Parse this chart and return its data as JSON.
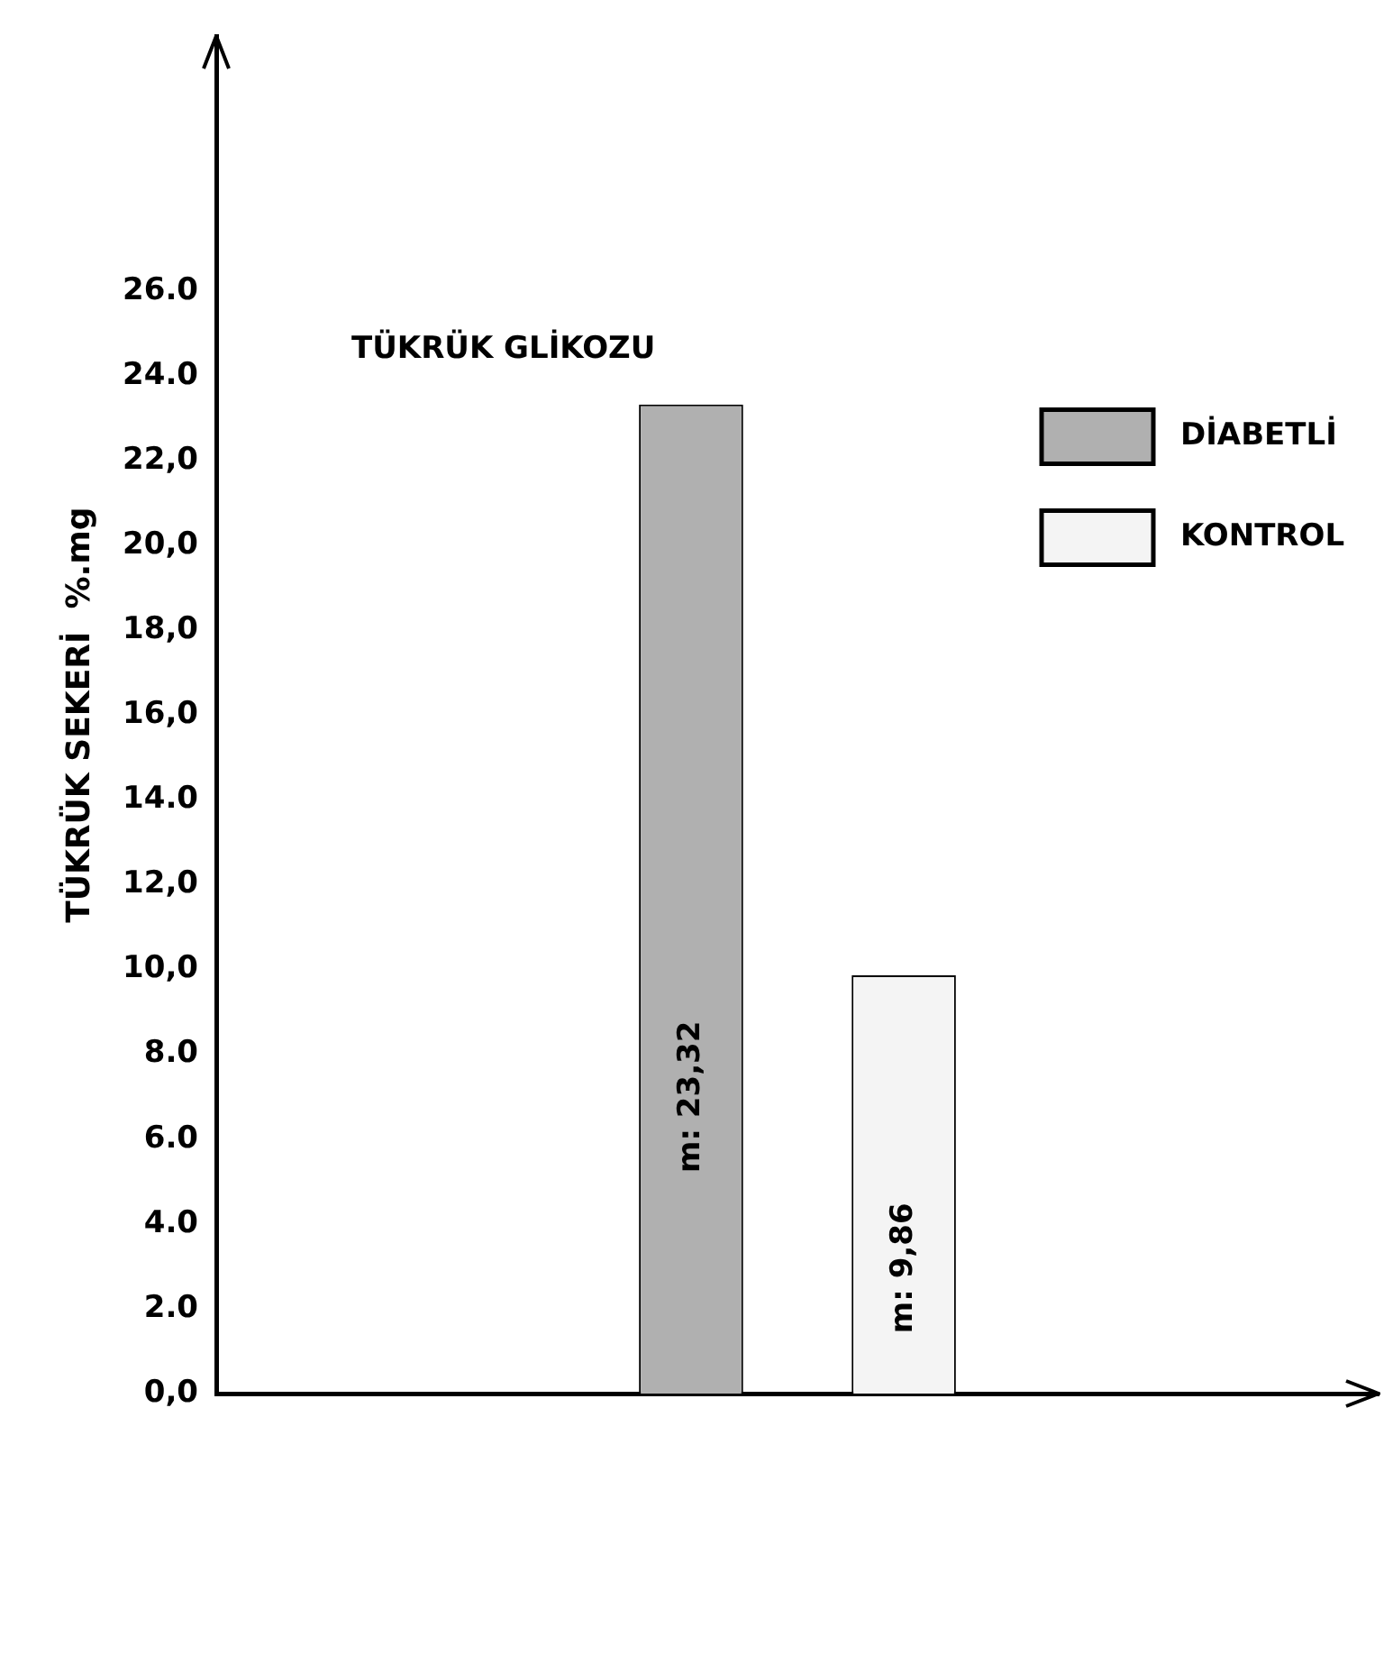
{
  "chart_data": {
    "type": "bar",
    "title": "TÜKRÜK GLİKOZU",
    "ylabel": "TÜKRÜK SEKERİ  %.mg",
    "categories": [
      null
    ],
    "series": [
      {
        "name": "DİABETLİ",
        "color": "#b0b0b0",
        "values": [
          23.32
        ],
        "value_labels": [
          "m: 23,32"
        ]
      },
      {
        "name": "KONTROL",
        "color": "#f4f4f4",
        "values": [
          9.86
        ],
        "value_labels": [
          "m: 9,86"
        ]
      }
    ],
    "ylim": [
      0,
      32
    ],
    "yticks": [
      {
        "value": 0,
        "label": "0,0"
      },
      {
        "value": 2,
        "label": "2.0"
      },
      {
        "value": 4,
        "label": "4.0"
      },
      {
        "value": 6,
        "label": "6.0"
      },
      {
        "value": 8,
        "label": "8.0"
      },
      {
        "value": 10,
        "label": "10,0"
      },
      {
        "value": 12,
        "label": "12,0"
      },
      {
        "value": 14,
        "label": "14.0"
      },
      {
        "value": 16,
        "label": "16,0"
      },
      {
        "value": 18,
        "label": "18,0"
      },
      {
        "value": 20,
        "label": "20,0"
      },
      {
        "value": 22,
        "label": "22,0"
      },
      {
        "value": 24,
        "label": "24.0"
      },
      {
        "value": 26,
        "label": "26.0"
      }
    ],
    "grid": false,
    "legend": "top right",
    "tick_labels": "y"
  }
}
